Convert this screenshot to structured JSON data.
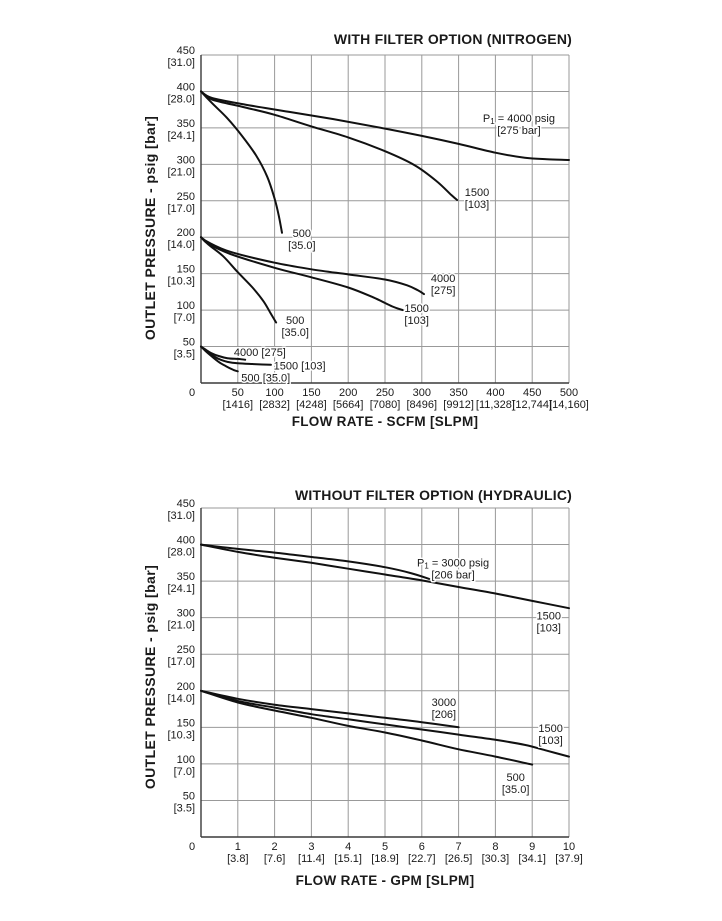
{
  "colors": {
    "background": "#ffffff",
    "grid": "#999999",
    "axis": "#3a3a3a",
    "curve": "#111111",
    "text": "#1a1a1a"
  },
  "chart_data": [
    {
      "type": "line",
      "title": "WITH FILTER OPTION (NITROGEN)",
      "xlabel": "FLOW RATE - SCFM [SLPM]",
      "ylabel": "OUTLET PRESSURE - psig [bar]",
      "xlim": [
        0,
        500
      ],
      "ylim": [
        0,
        450
      ],
      "grid": true,
      "x_ticks": [
        {
          "v": 0,
          "label": "0",
          "sub": ""
        },
        {
          "v": 50,
          "label": "50",
          "sub": "[1416]"
        },
        {
          "v": 100,
          "label": "100",
          "sub": "[2832]"
        },
        {
          "v": 150,
          "label": "150",
          "sub": "[4248]"
        },
        {
          "v": 200,
          "label": "200",
          "sub": "[5664]"
        },
        {
          "v": 250,
          "label": "250",
          "sub": "[7080]"
        },
        {
          "v": 300,
          "label": "300",
          "sub": "[8496]"
        },
        {
          "v": 350,
          "label": "350",
          "sub": "[9912]"
        },
        {
          "v": 400,
          "label": "400",
          "sub": "[11,328]"
        },
        {
          "v": 450,
          "label": "450",
          "sub": "[12,744]"
        },
        {
          "v": 500,
          "label": "500",
          "sub": "[14,160]"
        }
      ],
      "y_ticks": [
        {
          "v": 450,
          "label": "450",
          "sub": "[31.0]"
        },
        {
          "v": 400,
          "label": "400",
          "sub": "[28.0]"
        },
        {
          "v": 350,
          "label": "350",
          "sub": "[24.1]"
        },
        {
          "v": 300,
          "label": "300",
          "sub": "[21.0]"
        },
        {
          "v": 250,
          "label": "250",
          "sub": "[17.0]"
        },
        {
          "v": 200,
          "label": "200",
          "sub": "[14.0]"
        },
        {
          "v": 150,
          "label": "150",
          "sub": "[10.3]"
        },
        {
          "v": 100,
          "label": "100",
          "sub": "[7.0]"
        },
        {
          "v": 50,
          "label": "50",
          "sub": "[3.5]"
        }
      ],
      "series": [
        {
          "name": "set-400psig-inlet-4000psig",
          "points": [
            [
              0,
              400
            ],
            [
              15,
              391
            ],
            [
              60,
              382
            ],
            [
              120,
              372
            ],
            [
              180,
              362
            ],
            [
              240,
              351
            ],
            [
              300,
              339
            ],
            [
              350,
              328
            ],
            [
              400,
              316
            ],
            [
              440,
              309
            ],
            [
              470,
              307
            ],
            [
              500,
              306
            ]
          ]
        },
        {
          "name": "set-400psig-inlet-1500psig",
          "points": [
            [
              0,
              400
            ],
            [
              15,
              389
            ],
            [
              60,
              378
            ],
            [
              100,
              368
            ],
            [
              150,
              352
            ],
            [
              200,
              337
            ],
            [
              250,
              318
            ],
            [
              290,
              299
            ],
            [
              320,
              277
            ],
            [
              340,
              258
            ],
            [
              348,
              251
            ]
          ]
        },
        {
          "name": "set-400psig-inlet-500psig",
          "points": [
            [
              0,
              400
            ],
            [
              15,
              384
            ],
            [
              35,
              364
            ],
            [
              55,
              340
            ],
            [
              75,
              312
            ],
            [
              90,
              283
            ],
            [
              100,
              253
            ],
            [
              106,
              228
            ],
            [
              110,
              206
            ]
          ]
        },
        {
          "name": "set-200psig-inlet-4000psig",
          "points": [
            [
              0,
              200
            ],
            [
              10,
              193
            ],
            [
              40,
              180
            ],
            [
              100,
              165
            ],
            [
              150,
              156
            ],
            [
              200,
              149
            ],
            [
              250,
              142
            ],
            [
              280,
              134
            ],
            [
              295,
              127
            ],
            [
              303,
              122
            ]
          ]
        },
        {
          "name": "set-200psig-inlet-1500psig",
          "points": [
            [
              0,
              200
            ],
            [
              10,
              191
            ],
            [
              40,
              177
            ],
            [
              100,
              158
            ],
            [
              150,
              145
            ],
            [
              200,
              131
            ],
            [
              235,
              117
            ],
            [
              260,
              105
            ],
            [
              274,
              100
            ]
          ]
        },
        {
          "name": "set-200psig-inlet-500psig",
          "points": [
            [
              0,
              200
            ],
            [
              10,
              190
            ],
            [
              30,
              174
            ],
            [
              50,
              152
            ],
            [
              70,
              131
            ],
            [
              85,
              112
            ],
            [
              95,
              95
            ],
            [
              102,
              83
            ]
          ]
        },
        {
          "name": "set-50psig-inlet-4000psig",
          "points": [
            [
              0,
              50
            ],
            [
              6,
              46
            ],
            [
              14,
              41
            ],
            [
              24,
              37
            ],
            [
              36,
              34
            ],
            [
              50,
              33
            ],
            [
              60,
              32
            ]
          ]
        },
        {
          "name": "set-50psig-inlet-1500psig",
          "points": [
            [
              0,
              50
            ],
            [
              6,
              45
            ],
            [
              14,
              39
            ],
            [
              24,
              33
            ],
            [
              36,
              29
            ],
            [
              50,
              27
            ],
            [
              70,
              26
            ],
            [
              95,
              25
            ]
          ]
        },
        {
          "name": "set-50psig-inlet-500psig",
          "points": [
            [
              0,
              50
            ],
            [
              6,
              44
            ],
            [
              14,
              37
            ],
            [
              24,
              29
            ],
            [
              34,
              23
            ],
            [
              44,
              18
            ],
            [
              50,
              16
            ]
          ]
        }
      ],
      "annotations": [
        {
          "name": "inlet-4000-callout",
          "x": 432,
          "y": 372,
          "lines": [
            "P1 = 4000 psig",
            "[275 bar]"
          ]
        },
        {
          "name": "inlet-1500-label-set400",
          "x": 375,
          "y": 270,
          "lines": [
            "1500",
            "[103]"
          ]
        },
        {
          "name": "inlet-500-label-set400",
          "x": 137,
          "y": 214,
          "lines": [
            "500",
            "[35.0]"
          ]
        },
        {
          "name": "inlet-4000-label-set200",
          "x": 329,
          "y": 152,
          "lines": [
            "4000",
            "[275]"
          ]
        },
        {
          "name": "inlet-1500-label-set200",
          "x": 293,
          "y": 111,
          "lines": [
            "1500",
            "[103]"
          ]
        },
        {
          "name": "inlet-500-label-set200",
          "x": 128,
          "y": 95,
          "lines": [
            "500",
            "[35.0]"
          ]
        },
        {
          "name": "inlet-4000-label-set50",
          "x": 80,
          "y": 51,
          "lines": [
            "4000 [275]"
          ]
        },
        {
          "name": "inlet-1500-label-set50",
          "x": 134,
          "y": 32,
          "lines": [
            "1500 [103]"
          ]
        },
        {
          "name": "inlet-500-label-set50",
          "x": 88,
          "y": 16,
          "lines": [
            "500 [35.0]"
          ]
        }
      ]
    },
    {
      "type": "line",
      "title": "WITHOUT FILTER OPTION (HYDRAULIC)",
      "xlabel": "FLOW RATE - GPM [SLPM]",
      "ylabel": "OUTLET PRESSURE - psig [bar]",
      "xlim": [
        0,
        10
      ],
      "ylim": [
        0,
        450
      ],
      "grid": true,
      "x_ticks": [
        {
          "v": 0,
          "label": "0",
          "sub": ""
        },
        {
          "v": 1,
          "label": "1",
          "sub": "[3.8]"
        },
        {
          "v": 2,
          "label": "2",
          "sub": "[7.6]"
        },
        {
          "v": 3,
          "label": "3",
          "sub": "[11.4]"
        },
        {
          "v": 4,
          "label": "4",
          "sub": "[15.1]"
        },
        {
          "v": 5,
          "label": "5",
          "sub": "[18.9]"
        },
        {
          "v": 6,
          "label": "6",
          "sub": "[22.7]"
        },
        {
          "v": 7,
          "label": "7",
          "sub": "[26.5]"
        },
        {
          "v": 8,
          "label": "8",
          "sub": "[30.3]"
        },
        {
          "v": 9,
          "label": "9",
          "sub": "[34.1]"
        },
        {
          "v": 10,
          "label": "10",
          "sub": "[37.9]"
        }
      ],
      "y_ticks": [
        {
          "v": 450,
          "label": "450",
          "sub": "[31.0]"
        },
        {
          "v": 400,
          "label": "400",
          "sub": "[28.0]"
        },
        {
          "v": 350,
          "label": "350",
          "sub": "[24.1]"
        },
        {
          "v": 300,
          "label": "300",
          "sub": "[21.0]"
        },
        {
          "v": 250,
          "label": "250",
          "sub": "[17.0]"
        },
        {
          "v": 200,
          "label": "200",
          "sub": "[14.0]"
        },
        {
          "v": 150,
          "label": "150",
          "sub": "[10.3]"
        },
        {
          "v": 100,
          "label": "100",
          "sub": "[7.0]"
        },
        {
          "v": 50,
          "label": "50",
          "sub": "[3.5]"
        }
      ],
      "series": [
        {
          "name": "set-400psig-inlet-3000psig",
          "points": [
            [
              0,
              400
            ],
            [
              1,
              394
            ],
            [
              2,
              389
            ],
            [
              3,
              383
            ],
            [
              4,
              377
            ],
            [
              5,
              369
            ],
            [
              5.7,
              361
            ],
            [
              6.2,
              353
            ]
          ]
        },
        {
          "name": "set-400psig-inlet-1500psig",
          "points": [
            [
              0,
              400
            ],
            [
              1,
              390
            ],
            [
              2,
              382
            ],
            [
              3,
              375
            ],
            [
              4,
              367
            ],
            [
              5,
              359
            ],
            [
              6,
              351
            ],
            [
              7,
              342
            ],
            [
              8,
              333
            ],
            [
              9,
              323
            ],
            [
              10,
              313
            ]
          ]
        },
        {
          "name": "set-200psig-inlet-3000psig",
          "points": [
            [
              0,
              200
            ],
            [
              1,
              189
            ],
            [
              2,
              181
            ],
            [
              3,
              175
            ],
            [
              4,
              169
            ],
            [
              5,
              163
            ],
            [
              6,
              157
            ],
            [
              7,
              150
            ]
          ]
        },
        {
          "name": "set-200psig-inlet-1500psig",
          "points": [
            [
              0,
              200
            ],
            [
              1,
              186
            ],
            [
              2,
              177
            ],
            [
              3,
              168
            ],
            [
              4,
              161
            ],
            [
              5,
              154
            ],
            [
              6,
              147
            ],
            [
              7,
              140
            ],
            [
              8,
              133
            ],
            [
              8.8,
              126
            ],
            [
              9.4,
              118
            ],
            [
              10,
              110
            ]
          ]
        },
        {
          "name": "set-200psig-inlet-500psig",
          "points": [
            [
              0,
              200
            ],
            [
              1,
              184
            ],
            [
              2,
              173
            ],
            [
              3,
              163
            ],
            [
              4,
              152
            ],
            [
              5,
              143
            ],
            [
              6,
              132
            ],
            [
              7,
              120
            ],
            [
              8,
              110
            ],
            [
              9,
              99
            ]
          ]
        }
      ],
      "annotations": [
        {
          "name": "inlet-3000-callout",
          "x": 6.85,
          "y": 384,
          "lines": [
            "P1 = 3000 psig",
            "[206 bar]"
          ]
        },
        {
          "name": "inlet-1500-label-set400",
          "x": 9.45,
          "y": 311,
          "lines": [
            "1500",
            "[103]"
          ]
        },
        {
          "name": "inlet-3000-label-set200",
          "x": 6.6,
          "y": 193,
          "lines": [
            "3000",
            "[206]"
          ]
        },
        {
          "name": "inlet-1500-label-set200",
          "x": 9.5,
          "y": 157,
          "lines": [
            "1500",
            "[103]"
          ]
        },
        {
          "name": "inlet-500-label-set200",
          "x": 8.55,
          "y": 90,
          "lines": [
            "500",
            "[35.0]"
          ]
        }
      ]
    }
  ]
}
